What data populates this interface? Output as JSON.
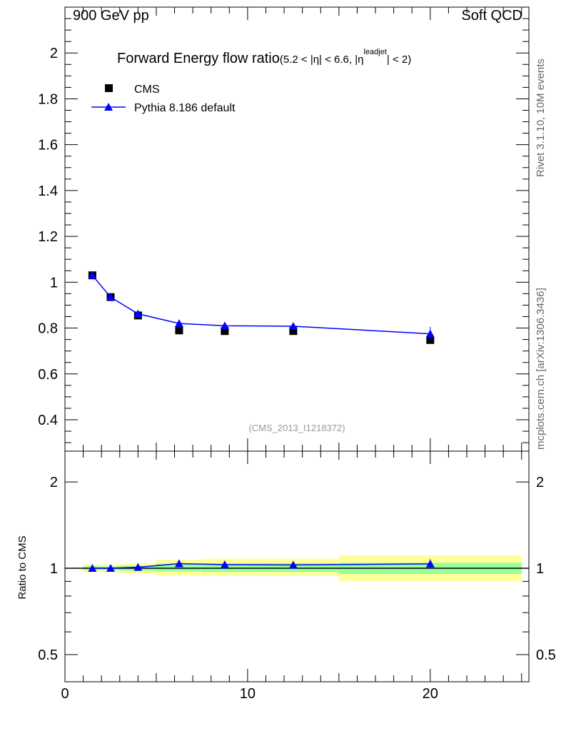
{
  "header": {
    "left": "900 GeV pp",
    "right": "Soft QCD"
  },
  "side": {
    "top": "Rivet 3.1.10,  10M events",
    "bottom": "mcplots.cern.ch [arXiv:1306.3436]"
  },
  "chart_data": [
    {
      "type": "scatter",
      "title": "Forward Energy flow ratio",
      "title_sub": "(5.2 < |η| < 6.6, |η",
      "title_sup": "leadjet",
      "title_end": "| < 2)",
      "watermark": "(CMS_2013_I1218372)",
      "xlim": [
        0,
        25.4
      ],
      "ylim": [
        0.263,
        2.2
      ],
      "yticks": [
        0.4,
        0.6,
        0.8,
        1,
        1.2,
        1.4,
        1.6,
        1.8,
        2
      ],
      "ytick_labels": [
        "0.4",
        "0.6",
        "0.8",
        "1",
        "1.2",
        "1.4",
        "1.6",
        "1.8",
        "2"
      ],
      "legend": [
        {
          "name": "CMS"
        },
        {
          "name": "Pythia 8.186 default"
        }
      ],
      "x": [
        1.5,
        2.5,
        4,
        6.25,
        8.75,
        12.5,
        20
      ],
      "series": [
        {
          "name": "CMS",
          "values": [
            1.03,
            0.935,
            0.855,
            0.79,
            0.787,
            0.787,
            0.748
          ],
          "color": "#000000"
        },
        {
          "name": "Pythia 8.186 default",
          "values": [
            1.03,
            0.935,
            0.862,
            0.82,
            0.81,
            0.808,
            0.775
          ],
          "errors": [
            0,
            0,
            0,
            0,
            0,
            0,
            0.03
          ],
          "color": "#0000ff"
        }
      ]
    },
    {
      "type": "ratio",
      "ylabel": "Ratio to CMS",
      "xlim": [
        0,
        25.4
      ],
      "ylim": [
        0.402,
        2.56
      ],
      "yscale": "log",
      "yticks": [
        0.5,
        1,
        2
      ],
      "ytick_labels": [
        "0.5",
        "1",
        "2"
      ],
      "xticks": [
        0,
        10,
        20
      ],
      "xtick_labels": [
        "0",
        "10",
        "20"
      ],
      "bins": [
        [
          1,
          2
        ],
        [
          2,
          3
        ],
        [
          3,
          5
        ],
        [
          5,
          7.5
        ],
        [
          7.5,
          10
        ],
        [
          10,
          15
        ],
        [
          15,
          25
        ]
      ],
      "band_total": [
        [
          0.97,
          1.03
        ],
        [
          0.97,
          1.03
        ],
        [
          0.96,
          1.04
        ],
        [
          0.945,
          1.07
        ],
        [
          0.94,
          1.08
        ],
        [
          0.94,
          1.08
        ],
        [
          0.9,
          1.11
        ]
      ],
      "band_stat": [
        [
          0.985,
          1.015
        ],
        [
          0.985,
          1.015
        ],
        [
          0.98,
          1.02
        ],
        [
          0.975,
          1.035
        ],
        [
          0.97,
          1.04
        ],
        [
          0.97,
          1.04
        ],
        [
          0.955,
          1.045
        ]
      ],
      "x": [
        1.5,
        2.5,
        4,
        6.25,
        8.75,
        12.5,
        20
      ],
      "values": [
        1.0,
        1.0,
        1.008,
        1.038,
        1.029,
        1.027,
        1.036
      ],
      "errors": [
        0,
        0,
        0,
        0,
        0,
        0,
        0.04
      ]
    }
  ],
  "colors": {
    "total": "#ffff99",
    "stat": "#99ff99",
    "mc": "#0000ff"
  }
}
